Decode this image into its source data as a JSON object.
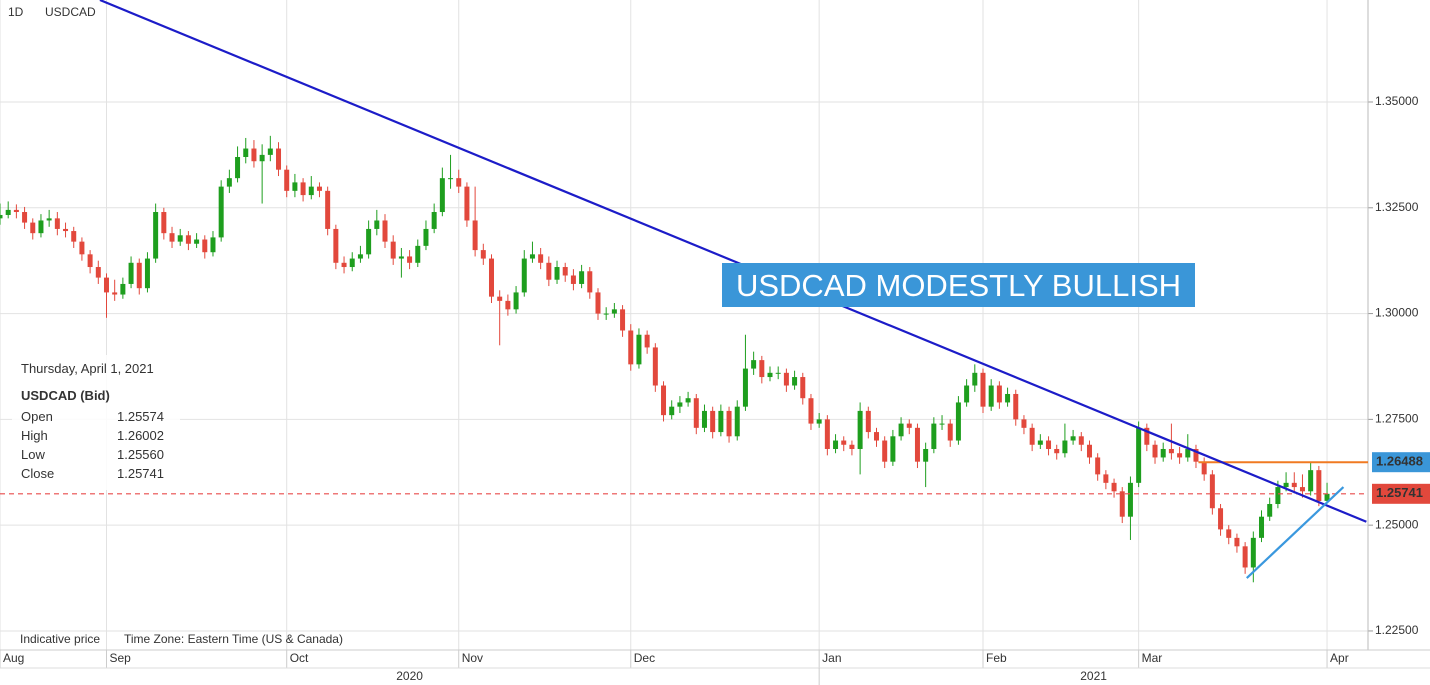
{
  "chart_data": {
    "type": "candlestick",
    "interval": "1D",
    "symbol": "USDCAD",
    "footer": [
      "Indicative price",
      "Time Zone: Eastern Time (US & Canada)"
    ],
    "xlim": [
      0,
      167
    ],
    "xticks": [
      {
        "value": 0,
        "label": "Aug"
      },
      {
        "value": 13,
        "label": "Sep"
      },
      {
        "value": 35,
        "label": "Oct"
      },
      {
        "value": 56,
        "label": "Nov"
      },
      {
        "value": 77,
        "label": "Dec"
      },
      {
        "value": 100,
        "label": "Jan"
      },
      {
        "value": 120,
        "label": "Feb"
      },
      {
        "value": 139,
        "label": "Mar"
      },
      {
        "value": 162,
        "label": "Apr"
      }
    ],
    "years": [
      "2020",
      "2021"
    ],
    "ylim": [
      1.2205,
      1.3741
    ],
    "yticks": [
      {
        "value": 1.225,
        "label": "1.22500"
      },
      {
        "value": 1.25,
        "label": "1.25000"
      },
      {
        "value": 1.275,
        "label": "1.27500"
      },
      {
        "value": 1.3,
        "label": "1.30000"
      },
      {
        "value": 1.325,
        "label": "1.32500"
      },
      {
        "value": 1.35,
        "label": "1.35000"
      }
    ],
    "grid": true,
    "up_color": "#1e9e1e",
    "down_color": "#e2483c",
    "last_price_color": "#e84b4b",
    "ohlc": [
      [
        1.3225,
        1.326,
        1.321,
        1.3233
      ],
      [
        1.3233,
        1.3265,
        1.3225,
        1.3245
      ],
      [
        1.3245,
        1.3258,
        1.3225,
        1.324
      ],
      [
        1.324,
        1.3252,
        1.32,
        1.3215
      ],
      [
        1.3215,
        1.3225,
        1.3175,
        1.319
      ],
      [
        1.319,
        1.3235,
        1.318,
        1.322
      ],
      [
        1.322,
        1.3245,
        1.3205,
        1.3225
      ],
      [
        1.3225,
        1.324,
        1.3185,
        1.32
      ],
      [
        1.32,
        1.3215,
        1.318,
        1.3195
      ],
      [
        1.3195,
        1.3205,
        1.3155,
        1.317
      ],
      [
        1.317,
        1.318,
        1.3125,
        1.314
      ],
      [
        1.314,
        1.315,
        1.3095,
        1.311
      ],
      [
        1.311,
        1.3125,
        1.307,
        1.3085
      ],
      [
        1.3085,
        1.3095,
        1.299,
        1.305
      ],
      [
        1.305,
        1.308,
        1.303,
        1.3045
      ],
      [
        1.3045,
        1.3085,
        1.3035,
        1.307
      ],
      [
        1.307,
        1.3135,
        1.306,
        1.312
      ],
      [
        1.312,
        1.313,
        1.3045,
        1.306
      ],
      [
        1.306,
        1.3145,
        1.305,
        1.313
      ],
      [
        1.313,
        1.326,
        1.312,
        1.324
      ],
      [
        1.324,
        1.325,
        1.3175,
        1.319
      ],
      [
        1.319,
        1.3205,
        1.3155,
        1.317
      ],
      [
        1.317,
        1.32,
        1.316,
        1.3185
      ],
      [
        1.3185,
        1.3195,
        1.315,
        1.3165
      ],
      [
        1.3165,
        1.319,
        1.3155,
        1.3175
      ],
      [
        1.3175,
        1.3185,
        1.313,
        1.3145
      ],
      [
        1.3145,
        1.3195,
        1.3135,
        1.318
      ],
      [
        1.318,
        1.3315,
        1.317,
        1.33
      ],
      [
        1.33,
        1.334,
        1.3285,
        1.332
      ],
      [
        1.332,
        1.3395,
        1.331,
        1.337
      ],
      [
        1.337,
        1.3415,
        1.3355,
        1.339
      ],
      [
        1.339,
        1.341,
        1.3345,
        1.336
      ],
      [
        1.336,
        1.34,
        1.326,
        1.3375
      ],
      [
        1.3375,
        1.342,
        1.336,
        1.339
      ],
      [
        1.339,
        1.3405,
        1.3325,
        1.334
      ],
      [
        1.334,
        1.335,
        1.3275,
        1.329
      ],
      [
        1.329,
        1.333,
        1.3275,
        1.331
      ],
      [
        1.331,
        1.332,
        1.3265,
        1.328
      ],
      [
        1.328,
        1.3325,
        1.327,
        1.33
      ],
      [
        1.33,
        1.331,
        1.3275,
        1.329
      ],
      [
        1.329,
        1.33,
        1.3185,
        1.32
      ],
      [
        1.32,
        1.321,
        1.3105,
        1.312
      ],
      [
        1.312,
        1.3135,
        1.3095,
        1.311
      ],
      [
        1.311,
        1.3145,
        1.31,
        1.313
      ],
      [
        1.313,
        1.316,
        1.312,
        1.314
      ],
      [
        1.314,
        1.322,
        1.313,
        1.32
      ],
      [
        1.32,
        1.3245,
        1.3185,
        1.322
      ],
      [
        1.322,
        1.3235,
        1.3155,
        1.317
      ],
      [
        1.317,
        1.3185,
        1.3115,
        1.313
      ],
      [
        1.313,
        1.3155,
        1.3085,
        1.3135
      ],
      [
        1.3135,
        1.315,
        1.3105,
        1.312
      ],
      [
        1.312,
        1.3175,
        1.311,
        1.316
      ],
      [
        1.316,
        1.322,
        1.315,
        1.32
      ],
      [
        1.32,
        1.326,
        1.319,
        1.324
      ],
      [
        1.324,
        1.3345,
        1.323,
        1.332
      ],
      [
        1.332,
        1.3375,
        1.3295,
        1.332
      ],
      [
        1.332,
        1.334,
        1.3285,
        1.33
      ],
      [
        1.33,
        1.331,
        1.3205,
        1.322
      ],
      [
        1.322,
        1.33,
        1.3135,
        1.315
      ],
      [
        1.315,
        1.3165,
        1.3115,
        1.313
      ],
      [
        1.313,
        1.314,
        1.3025,
        1.304
      ],
      [
        1.304,
        1.3055,
        1.2925,
        1.303
      ],
      [
        1.303,
        1.3045,
        1.2995,
        1.301
      ],
      [
        1.301,
        1.3065,
        1.3,
        1.305
      ],
      [
        1.305,
        1.315,
        1.304,
        1.313
      ],
      [
        1.313,
        1.317,
        1.312,
        1.314
      ],
      [
        1.314,
        1.3155,
        1.3105,
        1.312
      ],
      [
        1.312,
        1.3135,
        1.3065,
        1.308
      ],
      [
        1.308,
        1.3125,
        1.307,
        1.311
      ],
      [
        1.311,
        1.312,
        1.3075,
        1.309
      ],
      [
        1.309,
        1.3105,
        1.3055,
        1.307
      ],
      [
        1.307,
        1.3115,
        1.306,
        1.31
      ],
      [
        1.31,
        1.311,
        1.3035,
        1.305
      ],
      [
        1.305,
        1.306,
        1.2985,
        1.3
      ],
      [
        1.3,
        1.3015,
        1.2985,
        1.3
      ],
      [
        1.3,
        1.3025,
        1.299,
        1.301
      ],
      [
        1.301,
        1.302,
        1.2945,
        1.296
      ],
      [
        1.296,
        1.2975,
        1.2865,
        1.288
      ],
      [
        1.288,
        1.2965,
        1.287,
        1.295
      ],
      [
        1.295,
        1.296,
        1.2905,
        1.292
      ],
      [
        1.292,
        1.293,
        1.2815,
        1.283
      ],
      [
        1.283,
        1.284,
        1.2745,
        1.276
      ],
      [
        1.276,
        1.2795,
        1.275,
        1.278
      ],
      [
        1.278,
        1.2805,
        1.2765,
        1.279
      ],
      [
        1.279,
        1.2815,
        1.278,
        1.28
      ],
      [
        1.28,
        1.281,
        1.2715,
        1.273
      ],
      [
        1.273,
        1.2785,
        1.272,
        1.277
      ],
      [
        1.277,
        1.278,
        1.2705,
        1.272
      ],
      [
        1.272,
        1.2785,
        1.271,
        1.277
      ],
      [
        1.277,
        1.278,
        1.2695,
        1.271
      ],
      [
        1.271,
        1.2795,
        1.27,
        1.278
      ],
      [
        1.278,
        1.295,
        1.277,
        1.287
      ],
      [
        1.287,
        1.291,
        1.2855,
        1.289
      ],
      [
        1.289,
        1.29,
        1.2835,
        1.285
      ],
      [
        1.285,
        1.2875,
        1.284,
        1.286
      ],
      [
        1.286,
        1.2875,
        1.2845,
        1.286
      ],
      [
        1.286,
        1.287,
        1.2815,
        1.283
      ],
      [
        1.283,
        1.2865,
        1.282,
        1.285
      ],
      [
        1.285,
        1.286,
        1.2785,
        1.28
      ],
      [
        1.28,
        1.281,
        1.2725,
        1.274
      ],
      [
        1.274,
        1.2765,
        1.273,
        1.275
      ],
      [
        1.275,
        1.276,
        1.2665,
        1.268
      ],
      [
        1.268,
        1.2715,
        1.267,
        1.27
      ],
      [
        1.27,
        1.271,
        1.2675,
        1.269
      ],
      [
        1.269,
        1.27,
        1.2665,
        1.268
      ],
      [
        1.268,
        1.279,
        1.262,
        1.277
      ],
      [
        1.277,
        1.278,
        1.2705,
        1.272
      ],
      [
        1.272,
        1.273,
        1.2685,
        1.27
      ],
      [
        1.27,
        1.271,
        1.2635,
        1.265
      ],
      [
        1.265,
        1.2725,
        1.264,
        1.271
      ],
      [
        1.271,
        1.2755,
        1.27,
        1.274
      ],
      [
        1.274,
        1.275,
        1.2715,
        1.273
      ],
      [
        1.273,
        1.274,
        1.2635,
        1.265
      ],
      [
        1.265,
        1.2695,
        1.259,
        1.268
      ],
      [
        1.268,
        1.2755,
        1.267,
        1.274
      ],
      [
        1.274,
        1.276,
        1.2725,
        1.274
      ],
      [
        1.274,
        1.275,
        1.2685,
        1.27
      ],
      [
        1.27,
        1.2805,
        1.269,
        1.279
      ],
      [
        1.279,
        1.2845,
        1.278,
        1.283
      ],
      [
        1.283,
        1.288,
        1.2815,
        1.286
      ],
      [
        1.286,
        1.287,
        1.2765,
        1.278
      ],
      [
        1.278,
        1.2845,
        1.277,
        1.283
      ],
      [
        1.283,
        1.284,
        1.2775,
        1.279
      ],
      [
        1.279,
        1.2825,
        1.278,
        1.281
      ],
      [
        1.281,
        1.282,
        1.2735,
        1.275
      ],
      [
        1.275,
        1.276,
        1.2715,
        1.273
      ],
      [
        1.273,
        1.274,
        1.2675,
        1.269
      ],
      [
        1.269,
        1.2715,
        1.268,
        1.27
      ],
      [
        1.27,
        1.271,
        1.2665,
        1.268
      ],
      [
        1.268,
        1.269,
        1.2655,
        1.267
      ],
      [
        1.267,
        1.274,
        1.266,
        1.27
      ],
      [
        1.27,
        1.2725,
        1.269,
        1.271
      ],
      [
        1.271,
        1.272,
        1.2675,
        1.269
      ],
      [
        1.269,
        1.27,
        1.2645,
        1.266
      ],
      [
        1.266,
        1.267,
        1.2605,
        1.262
      ],
      [
        1.262,
        1.263,
        1.2585,
        1.26
      ],
      [
        1.26,
        1.261,
        1.2565,
        1.258
      ],
      [
        1.258,
        1.259,
        1.2505,
        1.252
      ],
      [
        1.252,
        1.2615,
        1.2465,
        1.26
      ],
      [
        1.26,
        1.2745,
        1.259,
        1.273
      ],
      [
        1.273,
        1.274,
        1.2675,
        1.269
      ],
      [
        1.269,
        1.27,
        1.2645,
        1.266
      ],
      [
        1.266,
        1.2695,
        1.265,
        1.268
      ],
      [
        1.268,
        1.274,
        1.2655,
        1.267
      ],
      [
        1.267,
        1.2685,
        1.2645,
        1.266
      ],
      [
        1.266,
        1.2715,
        1.265,
        1.268
      ],
      [
        1.268,
        1.269,
        1.2635,
        1.265
      ],
      [
        1.265,
        1.266,
        1.2605,
        1.262
      ],
      [
        1.262,
        1.263,
        1.2525,
        1.254
      ],
      [
        1.254,
        1.255,
        1.2475,
        1.249
      ],
      [
        1.249,
        1.25,
        1.2455,
        1.247
      ],
      [
        1.247,
        1.248,
        1.2435,
        1.245
      ],
      [
        1.245,
        1.246,
        1.2385,
        1.24
      ],
      [
        1.24,
        1.2485,
        1.2365,
        1.247
      ],
      [
        1.247,
        1.2535,
        1.246,
        1.252
      ],
      [
        1.252,
        1.2565,
        1.251,
        1.255
      ],
      [
        1.255,
        1.2605,
        1.254,
        1.259
      ],
      [
        1.259,
        1.2625,
        1.258,
        1.26
      ],
      [
        1.26,
        1.2625,
        1.2575,
        1.259
      ],
      [
        1.259,
        1.262,
        1.2565,
        1.258
      ],
      [
        1.258,
        1.265,
        1.257,
        1.263
      ],
      [
        1.263,
        1.264,
        1.2545,
        1.2557
      ],
      [
        1.25574,
        1.26002,
        1.2556,
        1.25741
      ]
    ],
    "trendlines": [
      {
        "color": "#1c1cc8",
        "x": [
          12.2,
          166.8
        ],
        "y": [
          1.3741,
          1.2508
        ]
      },
      {
        "color": "#3a98de",
        "x": [
          152.2,
          164
        ],
        "y": [
          1.2375,
          1.259
        ]
      }
    ],
    "levels": [
      {
        "value": 1.26488,
        "color": "#f07a22",
        "from": 146.3
      }
    ],
    "annotation": {
      "text": "USDCAD MODESTLY BULLISH",
      "color": "#3a96d8"
    },
    "info": {
      "date": "Thursday, April 1, 2021",
      "instrument": "USDCAD (Bid)",
      "fields": [
        "Open",
        "High",
        "Low",
        "Close"
      ],
      "values": [
        "1.25574",
        "1.26002",
        "1.25560",
        "1.25741"
      ]
    }
  }
}
